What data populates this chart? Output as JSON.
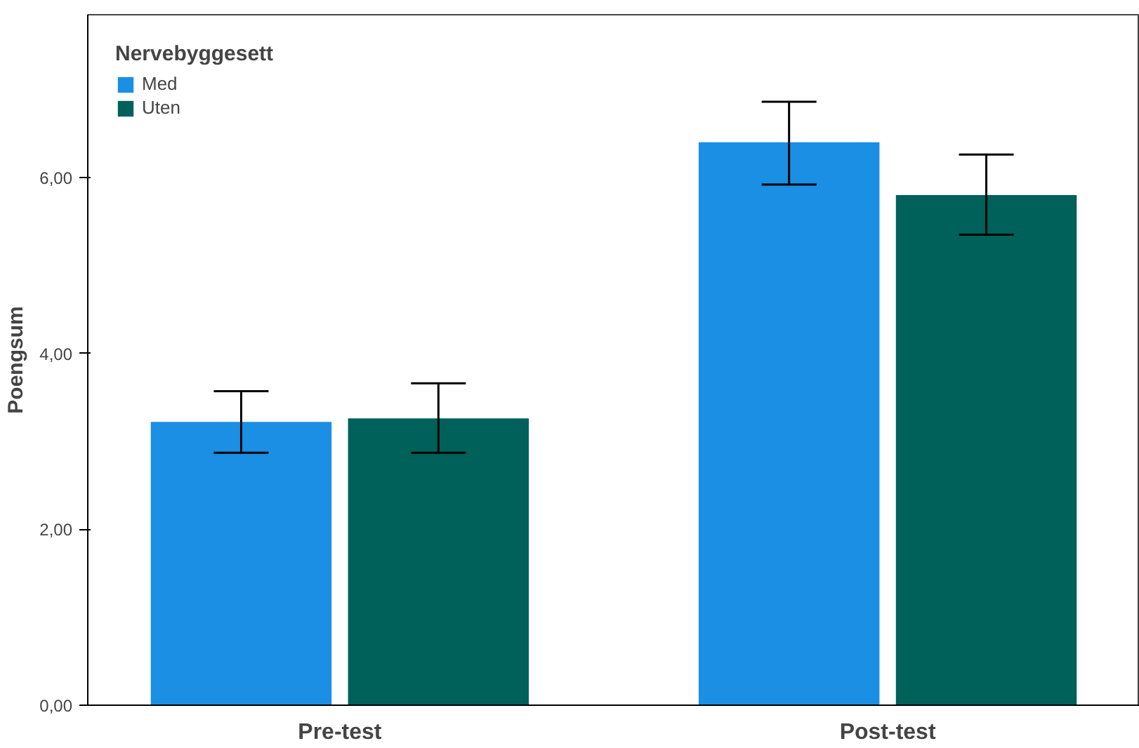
{
  "chart_data": {
    "type": "bar",
    "ylabel": "Poengsum",
    "legend_title": "Nervebyggesett",
    "categories": [
      "Pre-test",
      "Post-test"
    ],
    "series": [
      {
        "name": "Med",
        "color": "#1a8fe3",
        "values": [
          3.22,
          6.4
        ],
        "errors": [
          [
            2.87,
            3.57
          ],
          [
            5.92,
            6.86
          ]
        ]
      },
      {
        "name": "Uten",
        "color": "#00605a",
        "values": [
          3.26,
          5.8
        ],
        "errors": [
          [
            2.87,
            3.66
          ],
          [
            5.35,
            6.26
          ]
        ]
      }
    ],
    "ylim": [
      0,
      7.85
    ],
    "yticks": [
      {
        "value": 0,
        "label": "0,00"
      },
      {
        "value": 2,
        "label": "2,00"
      },
      {
        "value": 4,
        "label": "4,00"
      },
      {
        "value": 6,
        "label": "6,00"
      }
    ],
    "grid": false,
    "legend": "top left"
  }
}
